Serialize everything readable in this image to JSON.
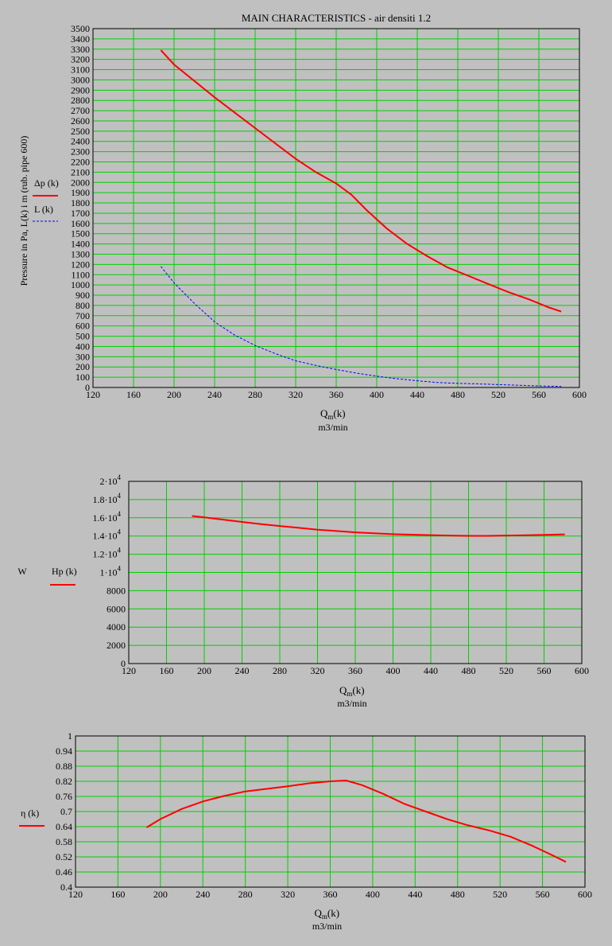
{
  "chart_data": [
    {
      "type": "line",
      "title": "MAIN CHARACTERISTICS -  air densiti 1.2",
      "ylabel": "Pressure in Pa,  L(k) i m (rub. pipe 600)",
      "xlabel": "Q",
      "xlabel_sub": "m",
      "xlabel_suffix": "(k)",
      "xunit": "m3/min",
      "xlim": [
        120,
        600
      ],
      "ylim": [
        0,
        3500
      ],
      "xticks": [
        120,
        160,
        200,
        240,
        280,
        320,
        360,
        400,
        440,
        480,
        520,
        560,
        600
      ],
      "yticks": [
        0,
        100,
        200,
        300,
        400,
        500,
        600,
        700,
        800,
        900,
        1000,
        1100,
        1200,
        1300,
        1400,
        1500,
        1600,
        1700,
        1800,
        1900,
        2000,
        2100,
        2200,
        2300,
        2400,
        2500,
        2600,
        2700,
        2800,
        2900,
        3000,
        3100,
        3200,
        3300,
        3400,
        3500
      ],
      "xtick_labels": [
        "120",
        "160",
        "200",
        "240",
        "280",
        "320",
        "360",
        "400",
        "440",
        "480",
        "520",
        "560",
        "600"
      ],
      "ytick_labels": [
        "0",
        "100",
        "200",
        "300",
        "400",
        "500",
        "600",
        "700",
        "800",
        "900",
        "1000",
        "1100",
        "1200",
        "1300",
        "1400",
        "1500",
        "1600",
        "1700",
        "1800",
        "1900",
        "2000",
        "2100",
        "2200",
        "2300",
        "2400",
        "2500",
        "2600",
        "2700",
        "2800",
        "2900",
        "3000",
        "3100",
        "3200",
        "3300",
        "3400",
        "3500"
      ],
      "grid": true,
      "legend_position": "left",
      "series": [
        {
          "name": "Δp (k)",
          "color": "#ff0000",
          "style": "solid",
          "x": [
            187,
            200,
            220,
            240,
            260,
            280,
            300,
            320,
            340,
            360,
            375,
            390,
            410,
            430,
            450,
            470,
            490,
            510,
            530,
            550,
            570,
            582
          ],
          "y": [
            3290,
            3150,
            2990,
            2830,
            2680,
            2530,
            2380,
            2230,
            2100,
            1990,
            1880,
            1730,
            1550,
            1400,
            1280,
            1170,
            1090,
            1010,
            930,
            860,
            780,
            740
          ]
        },
        {
          "name": "L (k)",
          "color": "#0000ff",
          "style": "dashed",
          "x": [
            187,
            200,
            220,
            240,
            260,
            280,
            300,
            320,
            340,
            360,
            380,
            400,
            420,
            440,
            460,
            480,
            500,
            520,
            540,
            560,
            582
          ],
          "y": [
            1180,
            1020,
            820,
            640,
            510,
            410,
            330,
            260,
            215,
            175,
            140,
            110,
            85,
            65,
            48,
            40,
            35,
            28,
            22,
            15,
            10
          ]
        }
      ]
    },
    {
      "type": "line",
      "ylabel": "W",
      "xlabel": "Q",
      "xlabel_sub": "m",
      "xlabel_suffix": "(k)",
      "xunit": "m3/min",
      "xlim": [
        120,
        600
      ],
      "ylim": [
        0,
        20000
      ],
      "xticks": [
        120,
        160,
        200,
        240,
        280,
        320,
        360,
        400,
        440,
        480,
        520,
        560,
        600
      ],
      "yticks": [
        0,
        2000,
        4000,
        6000,
        8000,
        10000,
        12000,
        14000,
        16000,
        18000,
        20000
      ],
      "xtick_labels": [
        "120",
        "160",
        "200",
        "240",
        "280",
        "320",
        "360",
        "400",
        "440",
        "480",
        "520",
        "560",
        "600"
      ],
      "ytick_labels": [
        "0",
        "2000",
        "4000",
        "6000",
        "8000",
        "1·10",
        "1.2·10",
        "1.4·10",
        "1.6·10",
        "1.8·10",
        "2·10"
      ],
      "ytick_exponents": [
        "",
        "",
        "",
        "",
        "",
        "4",
        "4",
        "4",
        "4",
        "4",
        "4"
      ],
      "grid": true,
      "legend_position": "left",
      "series": [
        {
          "name": "Hp (k)",
          "color": "#ff0000",
          "style": "solid",
          "x": [
            187,
            200,
            220,
            240,
            260,
            280,
            300,
            320,
            340,
            360,
            380,
            400,
            420,
            440,
            460,
            480,
            500,
            520,
            540,
            560,
            582
          ],
          "y": [
            16200,
            16050,
            15800,
            15550,
            15300,
            15100,
            14900,
            14700,
            14550,
            14400,
            14300,
            14200,
            14150,
            14100,
            14050,
            14020,
            14020,
            14050,
            14080,
            14120,
            14180
          ]
        }
      ]
    },
    {
      "type": "line",
      "xlabel": "Q",
      "xlabel_sub": "m",
      "xlabel_suffix": "(k)",
      "xunit": "m3/min",
      "xlim": [
        120,
        600
      ],
      "ylim": [
        0.4,
        1.0
      ],
      "xticks": [
        120,
        160,
        200,
        240,
        280,
        320,
        360,
        400,
        440,
        480,
        520,
        560,
        600
      ],
      "yticks": [
        0.4,
        0.46,
        0.52,
        0.58,
        0.64,
        0.7,
        0.76,
        0.82,
        0.88,
        0.94,
        1.0
      ],
      "xtick_labels": [
        "120",
        "160",
        "200",
        "240",
        "280",
        "320",
        "360",
        "400",
        "440",
        "480",
        "520",
        "560",
        "600"
      ],
      "ytick_labels": [
        "0.4",
        "0.46",
        "0.52",
        "0.58",
        "0.64",
        "0.7",
        "0.76",
        "0.82",
        "0.88",
        "0.94",
        "1"
      ],
      "grid": true,
      "legend_position": "left",
      "series": [
        {
          "name": "η (k)",
          "color": "#ff0000",
          "style": "solid",
          "x": [
            187,
            200,
            220,
            240,
            260,
            280,
            300,
            320,
            340,
            360,
            375,
            390,
            410,
            430,
            450,
            470,
            490,
            510,
            530,
            550,
            570,
            582
          ],
          "y": [
            0.637,
            0.67,
            0.71,
            0.74,
            0.762,
            0.78,
            0.79,
            0.8,
            0.812,
            0.82,
            0.823,
            0.805,
            0.77,
            0.73,
            0.7,
            0.67,
            0.645,
            0.625,
            0.6,
            0.565,
            0.525,
            0.5
          ]
        }
      ]
    }
  ]
}
